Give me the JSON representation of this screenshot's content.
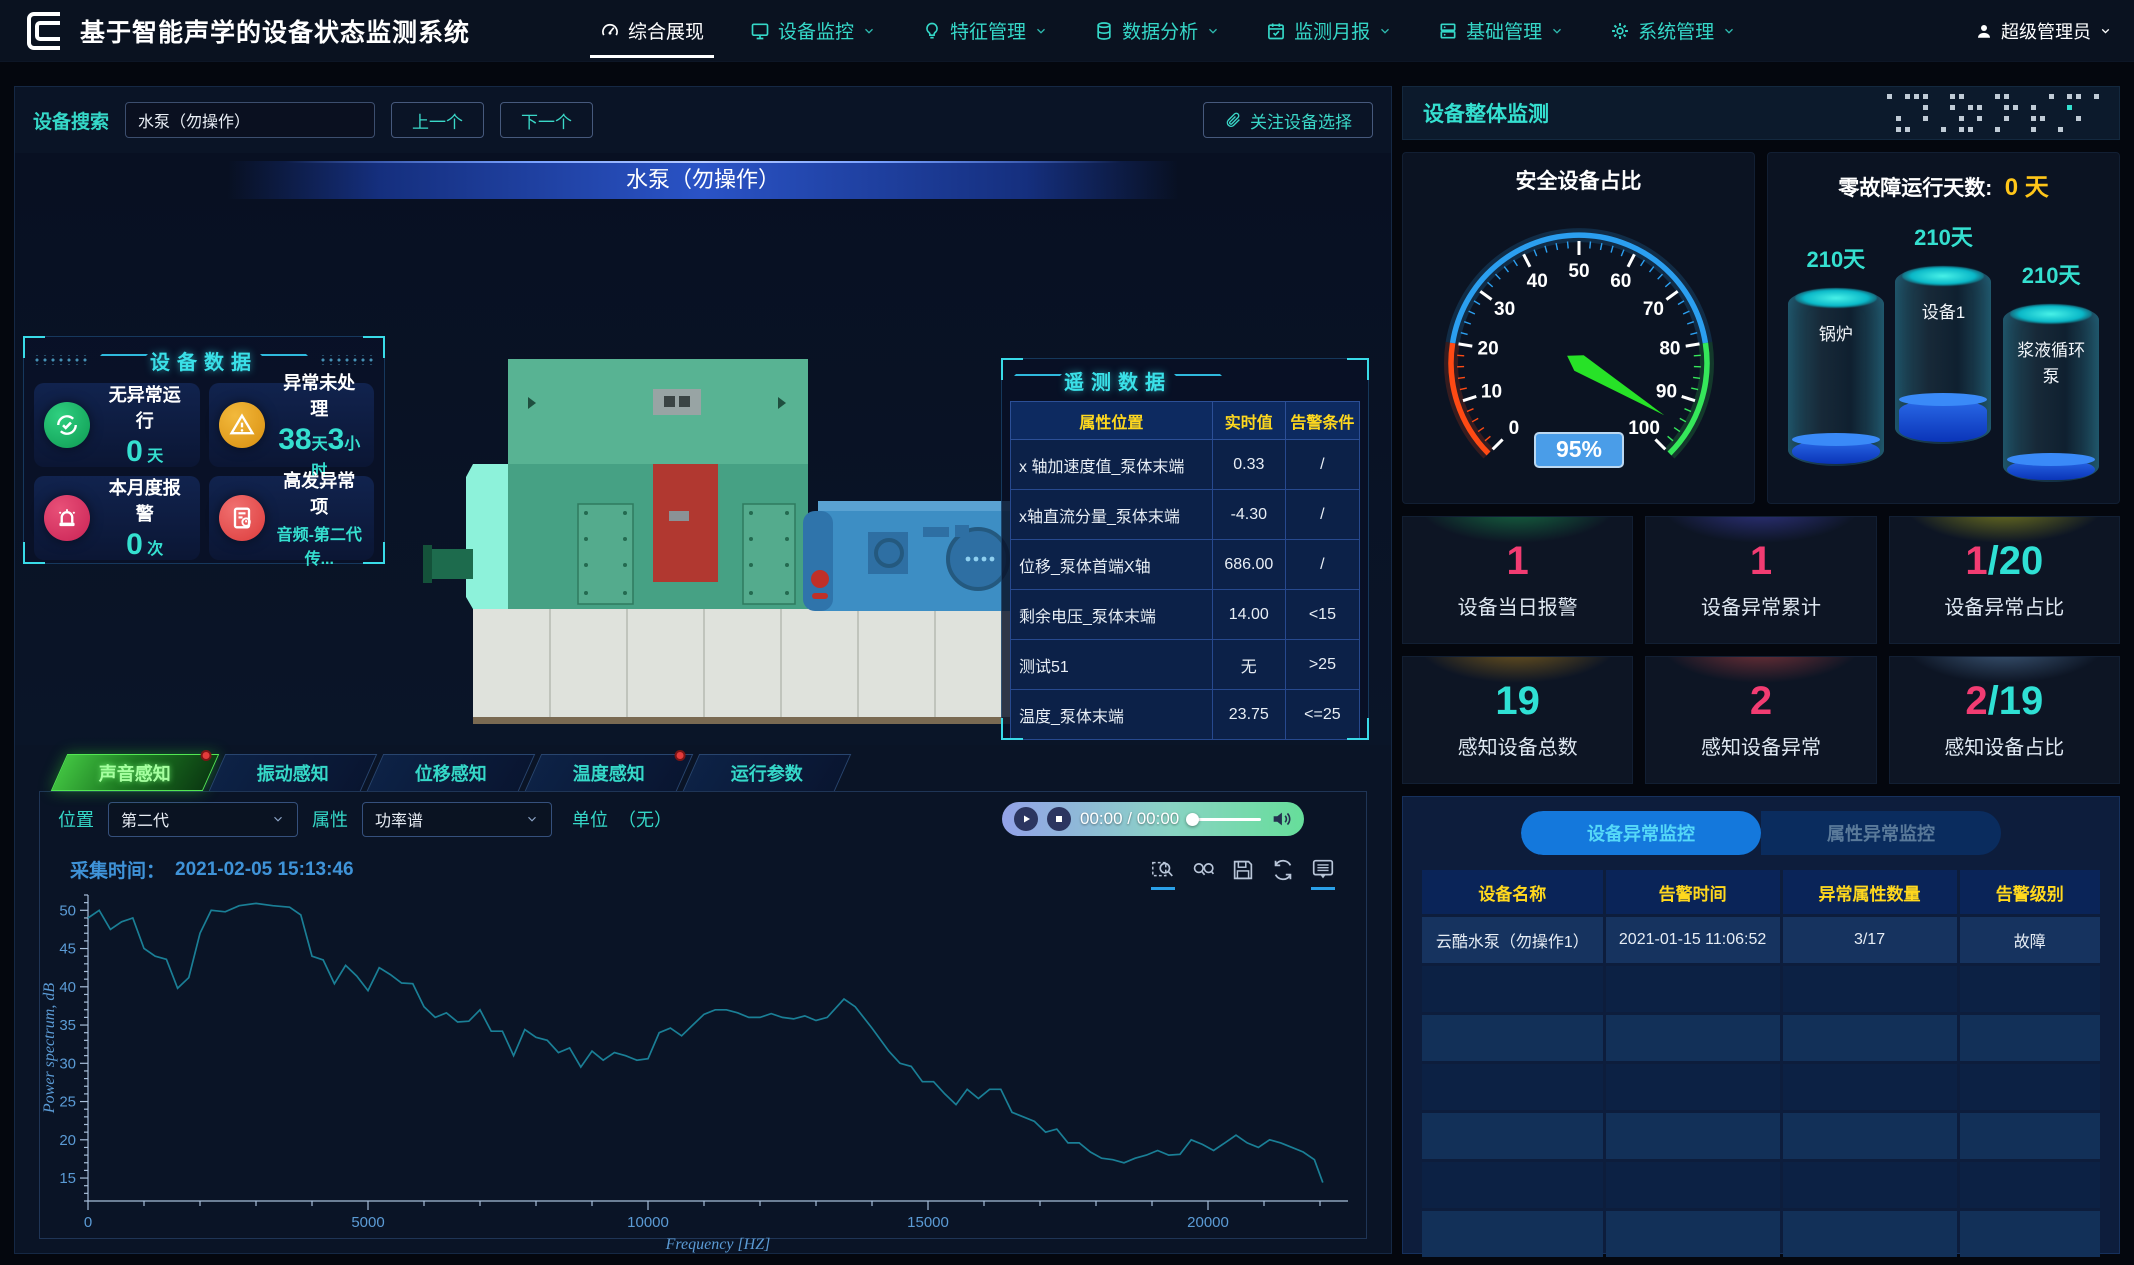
{
  "navbar": {
    "title": "基于智能声学的设备状态监测系统",
    "items": [
      {
        "label": "综合展现",
        "icon": "dashboard-icon",
        "active": true,
        "dropdown": false
      },
      {
        "label": "设备监控",
        "icon": "monitor-icon",
        "active": false,
        "dropdown": true
      },
      {
        "label": "特征管理",
        "icon": "bulb-icon",
        "active": false,
        "dropdown": true
      },
      {
        "label": "数据分析",
        "icon": "database-icon",
        "active": false,
        "dropdown": true
      },
      {
        "label": "监测月报",
        "icon": "calendar-icon",
        "active": false,
        "dropdown": true
      },
      {
        "label": "基础管理",
        "icon": "server-icon",
        "active": false,
        "dropdown": true
      },
      {
        "label": "系统管理",
        "icon": "gear-icon",
        "active": false,
        "dropdown": true
      }
    ],
    "user": {
      "label": "超级管理员",
      "icon": "user-icon"
    }
  },
  "search": {
    "label": "设备搜索",
    "value": "水泵（勿操作）",
    "prev": "上一个",
    "next": "下一个",
    "focus_button": "关注设备选择"
  },
  "viewport": {
    "banner": "水泵（勿操作）"
  },
  "device_data": {
    "title": "设备数据",
    "cards": [
      {
        "icon": "check-circle-icon",
        "color": "#0e9a52",
        "color2": "#2fd080",
        "title": "无异常运行",
        "parts": [
          {
            "t": "0",
            "big": true
          },
          {
            "t": " 天",
            "big": false
          }
        ]
      },
      {
        "icon": "warning-icon",
        "color": "#d98f10",
        "color2": "#f2b93c",
        "title": "异常未处理",
        "parts": [
          {
            "t": "38",
            "big": true
          },
          {
            "t": "天",
            "big": false
          },
          {
            "t": "3",
            "big": true
          },
          {
            "t": "小时",
            "big": false
          }
        ]
      },
      {
        "icon": "alarm-icon",
        "color": "#c92355",
        "color2": "#e85078",
        "title": "本月度报警",
        "parts": [
          {
            "t": "0",
            "big": true
          },
          {
            "t": " 次",
            "big": false
          }
        ]
      },
      {
        "icon": "document-alert-icon",
        "color": "#dd3c3c",
        "color2": "#f07070",
        "title": "高发异常项",
        "parts": [
          {
            "t": "音频-第二代传...",
            "big": false
          }
        ]
      }
    ]
  },
  "telemetry": {
    "title": "遥测数据",
    "headers": [
      "属性位置",
      "实时值",
      "告警条件"
    ],
    "rows": [
      {
        "name": "x 轴加速度值_泵体末端",
        "value": "0.33",
        "value_color": "blue",
        "cond": "/"
      },
      {
        "name": "x轴直流分量_泵体末端",
        "value": "-4.30",
        "value_color": "blue",
        "cond": "/"
      },
      {
        "name": "位移_泵体首端X轴",
        "value": "686.00",
        "value_color": "blue",
        "cond": "/"
      },
      {
        "name": "剩余电压_泵体末端",
        "value": "14.00",
        "value_color": "red",
        "cond": "<15"
      },
      {
        "name": "测试51",
        "value": "无",
        "value_color": "white",
        "cond": ">25"
      },
      {
        "name": "温度_泵体末端",
        "value": "23.75",
        "value_color": "red",
        "cond": "<=25"
      }
    ]
  },
  "sense_tabs": [
    {
      "label": "声音感知",
      "active": true,
      "dot": true
    },
    {
      "label": "振动感知",
      "active": false,
      "dot": false
    },
    {
      "label": "位移感知",
      "active": false,
      "dot": false
    },
    {
      "label": "温度感知",
      "active": false,
      "dot": true
    },
    {
      "label": "运行参数",
      "active": false,
      "dot": false
    }
  ],
  "controls": {
    "position_label": "位置",
    "position_value": "第二代",
    "attribute_label": "属性",
    "attribute_value": "功率谱",
    "unit_label": "单位",
    "unit_value": "（无）",
    "player": {
      "time": "00:00 / 00:00"
    }
  },
  "spectrum": {
    "capture_label": "采集时间：",
    "capture_time": "2021-02-05 15:13:46"
  },
  "toolbar": {
    "icons": [
      {
        "name": "zoom-select-icon",
        "active": true
      },
      {
        "name": "zoom-reset-icon",
        "active": false
      },
      {
        "name": "save-icon",
        "active": false
      },
      {
        "name": "refresh-icon",
        "active": false
      },
      {
        "name": "dataview-icon",
        "active": true
      }
    ]
  },
  "chart_data": {
    "type": "line",
    "title": "",
    "xlabel": "Frequency [HZ]",
    "ylabel": "Power spectrum, dB",
    "xlim": [
      0,
      22500
    ],
    "ylim": [
      12,
      52
    ],
    "xticks": [
      0,
      5000,
      10000,
      15000,
      20000
    ],
    "yticks": [
      15,
      20,
      25,
      30,
      35,
      40,
      45,
      50
    ],
    "grid": false,
    "legend": "none",
    "line_color": "#1a7f96",
    "points": [
      [
        0,
        49
      ],
      [
        200,
        50
      ],
      [
        400,
        47.5
      ],
      [
        600,
        48.5
      ],
      [
        800,
        49
      ],
      [
        1000,
        45
      ],
      [
        1200,
        44
      ],
      [
        1400,
        43.6
      ],
      [
        1600,
        39.8
      ],
      [
        1800,
        41.2
      ],
      [
        2000,
        47
      ],
      [
        2200,
        50
      ],
      [
        2450,
        49.8
      ],
      [
        2700,
        50.6
      ],
      [
        3000,
        50.9
      ],
      [
        3300,
        50.6
      ],
      [
        3600,
        50.4
      ],
      [
        3800,
        49.4
      ],
      [
        4000,
        44
      ],
      [
        4200,
        43.5
      ],
      [
        4400,
        40.4
      ],
      [
        4600,
        42.8
      ],
      [
        4800,
        41.4
      ],
      [
        5000,
        39.5
      ],
      [
        5200,
        42.5
      ],
      [
        5400,
        41.6
      ],
      [
        5600,
        40.5
      ],
      [
        5800,
        40.4
      ],
      [
        6000,
        37.4
      ],
      [
        6200,
        36
      ],
      [
        6400,
        36.6
      ],
      [
        6600,
        35.4
      ],
      [
        6800,
        35.5
      ],
      [
        7000,
        37
      ],
      [
        7200,
        34.2
      ],
      [
        7400,
        34.2
      ],
      [
        7600,
        31
      ],
      [
        7800,
        34.4
      ],
      [
        8000,
        33.4
      ],
      [
        8200,
        33
      ],
      [
        8400,
        31.4
      ],
      [
        8600,
        32
      ],
      [
        8800,
        29.5
      ],
      [
        9000,
        31.6
      ],
      [
        9200,
        30.4
      ],
      [
        9400,
        31.4
      ],
      [
        9600,
        31
      ],
      [
        9800,
        30.4
      ],
      [
        10000,
        30.6
      ],
      [
        10200,
        34
      ],
      [
        10400,
        34.6
      ],
      [
        10600,
        33.6
      ],
      [
        10800,
        35
      ],
      [
        11000,
        36.4
      ],
      [
        11200,
        37
      ],
      [
        11400,
        37
      ],
      [
        11600,
        36.6
      ],
      [
        11800,
        36
      ],
      [
        12000,
        36
      ],
      [
        12200,
        36.5
      ],
      [
        12400,
        36
      ],
      [
        12600,
        35.8
      ],
      [
        12800,
        36.2
      ],
      [
        13000,
        35.6
      ],
      [
        13200,
        36
      ],
      [
        13500,
        38.4
      ],
      [
        13700,
        37.4
      ],
      [
        14000,
        34.6
      ],
      [
        14300,
        31.6
      ],
      [
        14500,
        30
      ],
      [
        14700,
        29.6
      ],
      [
        14900,
        27.6
      ],
      [
        15100,
        27.6
      ],
      [
        15300,
        26
      ],
      [
        15500,
        24.6
      ],
      [
        15700,
        26.6
      ],
      [
        15900,
        25.4
      ],
      [
        16100,
        26.6
      ],
      [
        16300,
        26.6
      ],
      [
        16500,
        23.6
      ],
      [
        16700,
        23
      ],
      [
        16900,
        22.4
      ],
      [
        17100,
        21
      ],
      [
        17300,
        21.4
      ],
      [
        17500,
        19.6
      ],
      [
        17700,
        19.6
      ],
      [
        17900,
        18.4
      ],
      [
        18100,
        17.6
      ],
      [
        18300,
        17.4
      ],
      [
        18500,
        17
      ],
      [
        18700,
        17.6
      ],
      [
        18900,
        18
      ],
      [
        19100,
        18.6
      ],
      [
        19300,
        18
      ],
      [
        19500,
        18.1
      ],
      [
        19700,
        20
      ],
      [
        19900,
        19.4
      ],
      [
        20100,
        18.6
      ],
      [
        20300,
        19.6
      ],
      [
        20500,
        20.6
      ],
      [
        20700,
        19.6
      ],
      [
        20900,
        19
      ],
      [
        21100,
        20
      ],
      [
        21300,
        19.6
      ],
      [
        21500,
        19
      ],
      [
        21700,
        18.4
      ],
      [
        21900,
        17.4
      ],
      [
        22050,
        14.4
      ]
    ]
  },
  "overall": {
    "title": "设备整体监测",
    "gauge": {
      "title": "安全设备占比",
      "value": 95,
      "display": "95%",
      "min": 0,
      "max": 100,
      "segments": [
        {
          "from": 0,
          "to": 20,
          "color": "#ff4a14"
        },
        {
          "from": 20,
          "to": 80,
          "color": "#2b9ff0"
        },
        {
          "from": 80,
          "to": 100,
          "color": "#35e85a"
        }
      ],
      "needle_color": "#27e227",
      "badge_bg": "#4a9de8"
    },
    "zero_fault": {
      "title": "零故障运行天数:",
      "value": "0",
      "unit": "天",
      "tanks": [
        {
          "days": "210天",
          "name": "锅炉",
          "level": 14
        },
        {
          "days": "210天",
          "name": "设备1",
          "level": 24
        },
        {
          "days": "210天",
          "name": "浆液循环泵",
          "level": 12
        }
      ]
    },
    "stats": [
      {
        "main": "1",
        "suffix": "",
        "main_color": "#f23c72",
        "suffix_color": "#2fe0d4",
        "label": "设备当日报警",
        "glow": "#1caa58"
      },
      {
        "main": "1",
        "suffix": "",
        "main_color": "#f23c72",
        "suffix_color": "#2fe0d4",
        "label": "设备异常累计",
        "glow": "#4a4ac8"
      },
      {
        "main": "1",
        "suffix": "/20",
        "main_color": "#f23c72",
        "suffix_color": "#2fe0d4",
        "label": "设备异常占比",
        "glow": "#c2c21a"
      },
      {
        "main": "19",
        "suffix": "",
        "main_color": "#2fe0d4",
        "suffix_color": "#2fe0d4",
        "label": "感知设备总数",
        "glow": "#c08a18"
      },
      {
        "main": "2",
        "suffix": "",
        "main_color": "#f23c72",
        "suffix_color": "#2fe0d4",
        "label": "感知设备异常",
        "glow": "#c84848"
      },
      {
        "main": "2",
        "suffix": "/19",
        "main_color": "#f23c72",
        "suffix_color": "#2fe0d4",
        "label": "感知设备占比",
        "glow": "#628cb8"
      }
    ]
  },
  "alarm_table": {
    "tabs": [
      {
        "label": "设备异常监控",
        "active": true
      },
      {
        "label": "属性异常监控",
        "active": false
      }
    ],
    "headers": [
      "设备名称",
      "告警时间",
      "异常属性数量",
      "告警级别"
    ],
    "rows": [
      [
        "云酷水泵（勿操作1）",
        "2021-01-15 11:06:52",
        "3/17",
        "故障"
      ]
    ],
    "empty_rows": 6
  }
}
